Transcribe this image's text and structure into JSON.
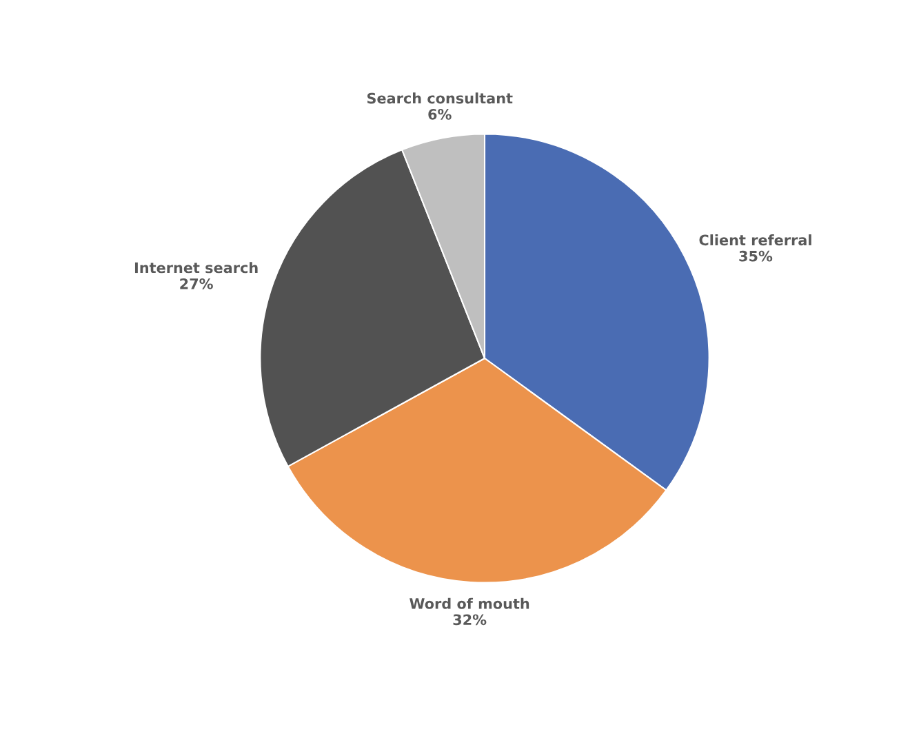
{
  "chart_data": {
    "type": "pie",
    "categories": [
      "Client referral",
      "Word of mouth",
      "Internet search",
      "Search consultant"
    ],
    "values": [
      35,
      32,
      27,
      6
    ],
    "value_labels": [
      "35%",
      "32%",
      "27%",
      "6%"
    ],
    "colors": [
      "#4a6cb3",
      "#ec934c",
      "#525252",
      "#bfbfbf"
    ],
    "legend": false
  }
}
